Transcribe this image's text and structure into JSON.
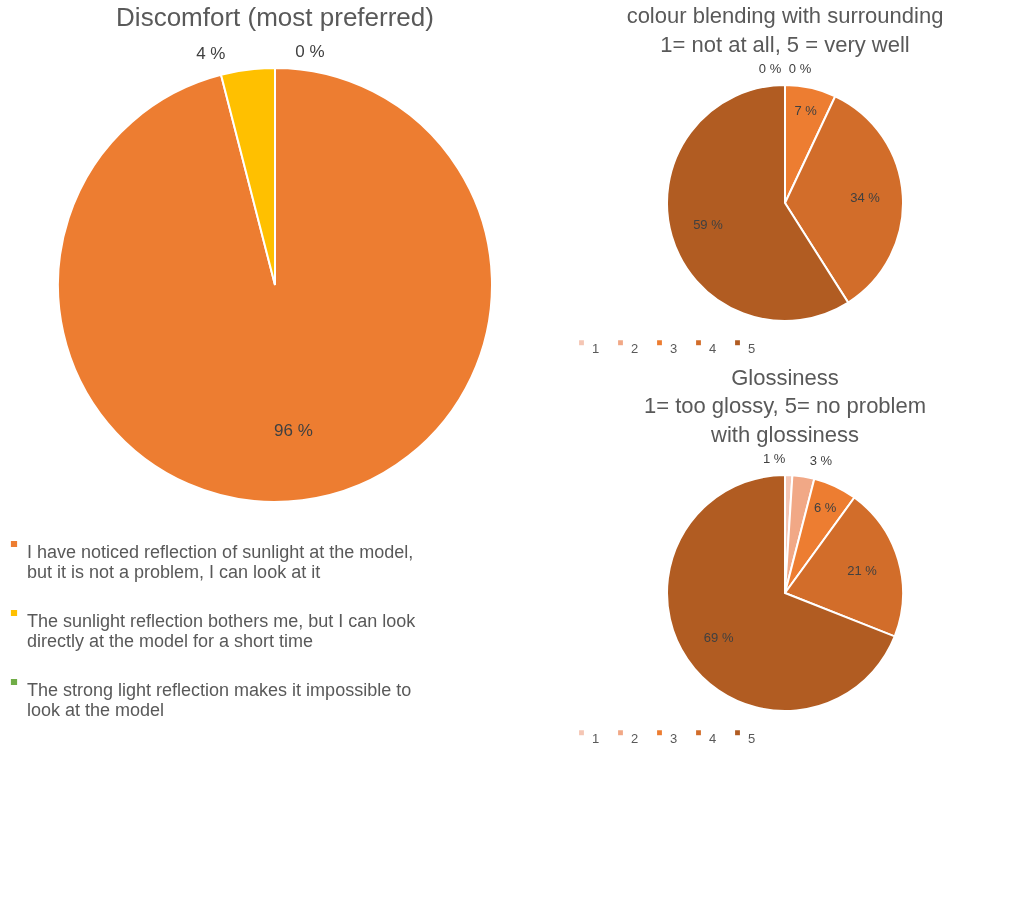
{
  "chart_data": [
    {
      "type": "pie",
      "title": "Discomfort (most preferred)",
      "categories": [
        "I have noticed reflection of sunlight at the model, but it is not a problem, I can look at it",
        "The sunlight reflection bothers me, but I can look directly at the model for a short time",
        "The strong light reflection makes it impossible to look at the model"
      ],
      "values": [
        96,
        4,
        0
      ],
      "colors": [
        "#ed7d31",
        "#ffc000",
        "#70ad47"
      ],
      "value_labels": [
        "96 %",
        "4 %",
        "0 %"
      ],
      "legend": "bottom"
    },
    {
      "type": "pie",
      "title": "colour blending with surrounding",
      "subtitle": "1= not at all, 5 = very well",
      "categories": [
        "1",
        "2",
        "3",
        "4",
        "5"
      ],
      "values": [
        0,
        0,
        7,
        34,
        59
      ],
      "colors": [
        "#f5c6b4",
        "#f1a886",
        "#ed7d31",
        "#d26d2a",
        "#b15c22"
      ],
      "value_labels": [
        "0 %",
        "0 %",
        "7 %",
        "34 %",
        "59 %"
      ],
      "legend": "bottom"
    },
    {
      "type": "pie",
      "title": "Glossiness",
      "subtitle": "1= too glossy, 5= no problem with glossiness",
      "categories": [
        "1",
        "2",
        "3",
        "4",
        "5"
      ],
      "values": [
        1,
        3,
        6,
        21,
        69
      ],
      "colors": [
        "#f5c6b4",
        "#f1a886",
        "#ed7d31",
        "#d26d2a",
        "#b15c22"
      ],
      "value_labels": [
        "1 %",
        "3 %",
        "6 %",
        "21 %",
        "69 %"
      ],
      "legend": "bottom"
    }
  ]
}
